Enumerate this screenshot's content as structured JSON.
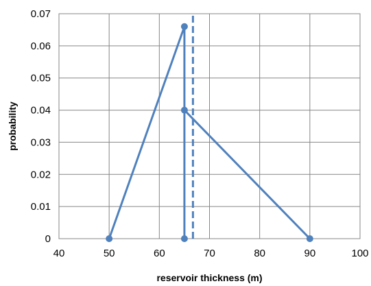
{
  "chart_data": {
    "type": "line",
    "title": "",
    "xlabel": "reservoir thickness (m)",
    "ylabel": "probability",
    "xlim": [
      40,
      100
    ],
    "ylim": [
      0,
      0.07
    ],
    "xticks": [
      40,
      50,
      60,
      70,
      80,
      90,
      100
    ],
    "yticks": [
      0,
      0.01,
      0.02,
      0.03,
      0.04,
      0.05,
      0.06,
      0.07
    ],
    "xtick_labels": [
      "40",
      "50",
      "60",
      "70",
      "80",
      "90",
      "100"
    ],
    "ytick_labels": [
      "0",
      "0.01",
      "0.02",
      "0.03",
      "0.04",
      "0.05",
      "0.06",
      "0.07"
    ],
    "grid": true,
    "legend": "none",
    "series": [
      {
        "style": "solid-with-markers",
        "color": "#4F81BD",
        "points": [
          {
            "x": 50,
            "y": 0
          },
          {
            "x": 65,
            "y": 0.066
          },
          {
            "x": 65,
            "y": 0
          },
          {
            "x": 65,
            "y": 0.04
          },
          {
            "x": 90,
            "y": 0
          }
        ]
      },
      {
        "style": "dashed",
        "color": "#4F81BD",
        "points": [
          {
            "x": 66.7,
            "y": 0
          },
          {
            "x": 66.7,
            "y": 0.07
          }
        ]
      }
    ]
  }
}
